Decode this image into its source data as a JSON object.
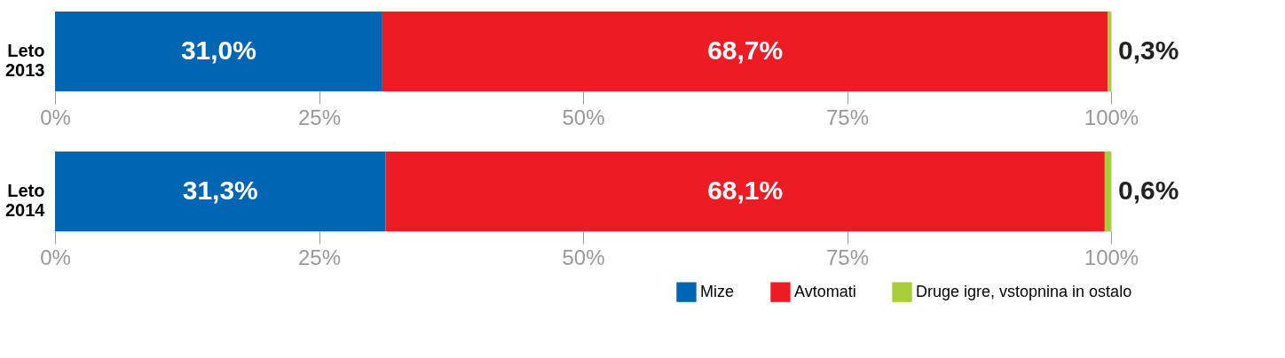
{
  "chart_data": [
    {
      "type": "bar",
      "orientation": "horizontal",
      "stacked": true,
      "categories": [
        "Leto 2013"
      ],
      "series": [
        {
          "name": "Mize",
          "color": "#0066b3",
          "values": [
            31.0
          ],
          "value_labels": [
            "31,0%"
          ]
        },
        {
          "name": "Avtomati",
          "color": "#ed1c24",
          "values": [
            68.7
          ],
          "value_labels": [
            "68,7%"
          ]
        },
        {
          "name": "Druge igre, vstopnina in ostalo",
          "color": "#a6ce39",
          "values": [
            0.3
          ],
          "value_labels": [
            "0,3%"
          ]
        }
      ],
      "xlim": [
        0,
        100
      ],
      "xticks": [
        {
          "value": 0,
          "label": "0%"
        },
        {
          "value": 25,
          "label": "25%"
        },
        {
          "value": 50,
          "label": "50%"
        },
        {
          "value": 75,
          "label": "75%"
        },
        {
          "value": 100,
          "label": "100%"
        }
      ],
      "legend": "bottom"
    },
    {
      "type": "bar",
      "orientation": "horizontal",
      "stacked": true,
      "categories": [
        "Leto 2014"
      ],
      "series": [
        {
          "name": "Mize",
          "color": "#0066b3",
          "values": [
            31.3
          ],
          "value_labels": [
            "31,3%"
          ]
        },
        {
          "name": "Avtomati",
          "color": "#ed1c24",
          "values": [
            68.1
          ],
          "value_labels": [
            "68,1%"
          ]
        },
        {
          "name": "Druge igre, vstopnina in ostalo",
          "color": "#a6ce39",
          "values": [
            0.6
          ],
          "value_labels": [
            "0,6%"
          ]
        }
      ],
      "xlim": [
        0,
        100
      ],
      "xticks": [
        {
          "value": 0,
          "label": "0%"
        },
        {
          "value": 25,
          "label": "25%"
        },
        {
          "value": 50,
          "label": "50%"
        },
        {
          "value": 75,
          "label": "75%"
        },
        {
          "value": 100,
          "label": "100%"
        }
      ],
      "legend": "bottom"
    }
  ]
}
